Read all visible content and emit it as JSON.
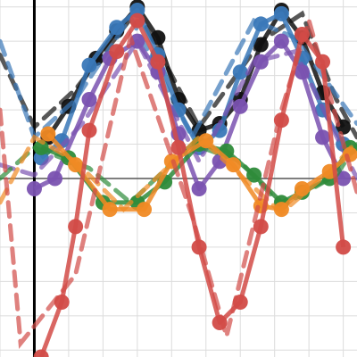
{
  "chart_data": {
    "type": "line",
    "title": "",
    "xlabel": "",
    "ylabel": "",
    "xlim": [
      -0.5,
      4.7
    ],
    "ylim": [
      -2.6,
      2.6
    ],
    "grid": true,
    "legend": "none",
    "axis_lines": {
      "x_zero": true,
      "y_zero": true
    },
    "series": [
      {
        "color": "#111111",
        "points": [
          [
            0.2,
            0.6
          ],
          [
            0.5,
            1.05
          ],
          [
            0.9,
            1.75
          ],
          [
            1.2,
            2.15
          ],
          [
            1.5,
            2.5
          ],
          [
            1.8,
            2.05
          ],
          [
            2.1,
            1.15
          ],
          [
            2.4,
            0.7
          ],
          [
            2.7,
            0.8
          ],
          [
            3.0,
            1.15
          ],
          [
            3.3,
            1.95
          ],
          [
            3.6,
            2.45
          ],
          [
            3.9,
            2.05
          ],
          [
            4.2,
            1.25
          ],
          [
            4.5,
            0.75
          ]
        ],
        "dashed_fit": [
          [
            -0.5,
            1.8
          ],
          [
            0.0,
            0.75
          ],
          [
            0.6,
            1.3
          ],
          [
            1.5,
            2.45
          ],
          [
            2.4,
            0.75
          ],
          [
            3.3,
            2.0
          ],
          [
            3.9,
            2.4
          ],
          [
            4.4,
            1.15
          ],
          [
            4.7,
            0.6
          ]
        ]
      },
      {
        "color": "#3a78b8",
        "points": [
          [
            0.1,
            0.3
          ],
          [
            0.4,
            0.55
          ],
          [
            0.8,
            1.65
          ],
          [
            1.2,
            2.2
          ],
          [
            1.5,
            2.45
          ],
          [
            1.8,
            1.8
          ],
          [
            2.1,
            1.0
          ],
          [
            2.4,
            0.45
          ],
          [
            2.7,
            0.7
          ],
          [
            3.0,
            1.55
          ],
          [
            3.3,
            2.25
          ],
          [
            3.6,
            2.4
          ],
          [
            3.9,
            1.75
          ],
          [
            4.2,
            1.0
          ],
          [
            4.5,
            0.5
          ]
        ],
        "dashed_fit": [
          [
            -0.5,
            2.0
          ],
          [
            0.0,
            0.6
          ],
          [
            0.6,
            1.15
          ],
          [
            1.4,
            2.35
          ],
          [
            2.3,
            0.6
          ],
          [
            3.2,
            2.3
          ],
          [
            3.8,
            2.05
          ],
          [
            4.7,
            0.8
          ]
        ]
      },
      {
        "color": "#7a52b0",
        "points": [
          [
            0.0,
            -0.15
          ],
          [
            0.3,
            0.0
          ],
          [
            0.8,
            1.15
          ],
          [
            1.1,
            1.75
          ],
          [
            1.5,
            2.0
          ],
          [
            1.8,
            1.55
          ],
          [
            2.1,
            0.65
          ],
          [
            2.4,
            -0.15
          ],
          [
            2.7,
            0.25
          ],
          [
            3.0,
            1.05
          ],
          [
            3.3,
            1.7
          ],
          [
            3.6,
            2.0
          ],
          [
            3.9,
            1.55
          ],
          [
            4.2,
            0.6
          ],
          [
            4.5,
            0.0
          ]
        ],
        "dashed_fit": [
          [
            -0.5,
            0.2
          ],
          [
            0.0,
            0.05
          ],
          [
            0.7,
            0.8
          ],
          [
            1.5,
            2.0
          ],
          [
            2.4,
            0.25
          ],
          [
            3.2,
            1.7
          ],
          [
            3.8,
            1.85
          ],
          [
            4.7,
            0.0
          ]
        ]
      },
      {
        "color": "#2e8b3a",
        "points": [
          [
            0.1,
            0.45
          ],
          [
            0.5,
            0.3
          ],
          [
            1.0,
            -0.35
          ],
          [
            1.5,
            -0.35
          ],
          [
            1.9,
            -0.05
          ],
          [
            2.4,
            0.5
          ],
          [
            2.8,
            0.4
          ],
          [
            3.2,
            0.05
          ],
          [
            3.6,
            -0.35
          ],
          [
            3.9,
            -0.2
          ],
          [
            4.3,
            0.0
          ],
          [
            4.6,
            0.45
          ]
        ],
        "dashed_fit": [
          [
            -0.5,
            0.0
          ],
          [
            0.0,
            0.45
          ],
          [
            0.8,
            0.15
          ],
          [
            1.4,
            -0.35
          ],
          [
            2.3,
            0.5
          ],
          [
            3.0,
            0.25
          ],
          [
            3.6,
            -0.4
          ],
          [
            4.4,
            0.05
          ],
          [
            4.7,
            0.5
          ]
        ]
      },
      {
        "color": "#f08a24",
        "points": [
          [
            0.2,
            0.65
          ],
          [
            0.6,
            0.2
          ],
          [
            1.1,
            -0.45
          ],
          [
            1.6,
            -0.45
          ],
          [
            2.0,
            0.25
          ],
          [
            2.5,
            0.55
          ],
          [
            2.9,
            0.2
          ],
          [
            3.3,
            -0.4
          ],
          [
            3.6,
            -0.45
          ],
          [
            3.9,
            -0.15
          ],
          [
            4.3,
            0.1
          ],
          [
            4.6,
            0.35
          ]
        ],
        "dashed_fit": [
          [
            -0.5,
            -0.35
          ],
          [
            0.0,
            0.6
          ],
          [
            0.6,
            0.25
          ],
          [
            1.3,
            -0.45
          ],
          [
            2.4,
            0.6
          ],
          [
            3.0,
            0.05
          ],
          [
            3.6,
            -0.5
          ],
          [
            4.3,
            0.1
          ],
          [
            4.7,
            0.55
          ]
        ]
      },
      {
        "color": "#d24b47",
        "points": [
          [
            0.1,
            -2.6
          ],
          [
            0.4,
            -1.8
          ],
          [
            0.6,
            -0.7
          ],
          [
            0.8,
            0.7
          ],
          [
            1.2,
            1.85
          ],
          [
            1.5,
            2.3
          ],
          [
            1.8,
            1.7
          ],
          [
            2.1,
            0.45
          ],
          [
            2.4,
            -1.0
          ],
          [
            2.7,
            -2.1
          ],
          [
            3.0,
            -1.8
          ],
          [
            3.3,
            -0.7
          ],
          [
            3.6,
            0.85
          ],
          [
            3.9,
            2.1
          ],
          [
            4.2,
            1.7
          ],
          [
            4.5,
            -1.0
          ]
        ],
        "dashed_fit": [
          [
            -0.5,
            1.0
          ],
          [
            -0.2,
            -2.4
          ],
          [
            0.6,
            -1.4
          ],
          [
            1.4,
            2.05
          ],
          [
            2.3,
            -0.55
          ],
          [
            2.8,
            -2.3
          ],
          [
            3.6,
            1.0
          ],
          [
            4.0,
            2.3
          ],
          [
            4.7,
            -0.2
          ]
        ]
      }
    ]
  }
}
